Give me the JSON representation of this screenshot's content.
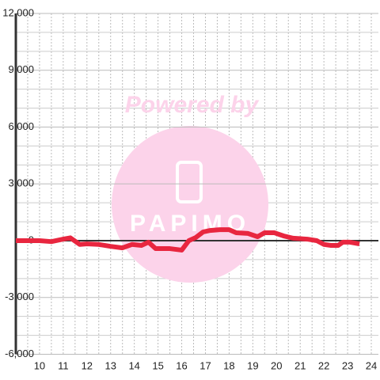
{
  "chart_data": {
    "type": "line",
    "watermark": "Powered by",
    "watermark_logo": "papimo",
    "x": [
      9,
      9.5,
      10,
      10.5,
      11,
      11.3,
      11.7,
      12,
      12.5,
      13,
      13.5,
      13.9,
      14.3,
      14.6,
      14.9,
      15.5,
      16,
      16.3,
      16.6,
      16.9,
      17.2,
      17.6,
      18,
      18.3,
      18.8,
      19.2,
      19.5,
      19.9,
      20.3,
      20.7,
      21.3,
      21.7,
      22,
      22.3,
      22.6,
      22.8,
      23.1,
      23.5
    ],
    "series": [
      {
        "color": "#e8263f",
        "values": [
          0,
          0,
          0,
          -50,
          80,
          150,
          -200,
          -170,
          -200,
          -300,
          -380,
          -200,
          -250,
          -80,
          -420,
          -420,
          -500,
          0,
          170,
          460,
          540,
          580,
          580,
          420,
          380,
          210,
          420,
          420,
          250,
          130,
          80,
          0,
          -200,
          -250,
          -250,
          -80,
          -80,
          -170
        ]
      }
    ],
    "xlim": [
      9,
      24.3
    ],
    "xticks": [
      10,
      11,
      12,
      13,
      14,
      15,
      16,
      17,
      18,
      19,
      20,
      21,
      22,
      23,
      24
    ],
    "x_minor_ticks": [
      9.5,
      10.5,
      11.5,
      12.5,
      13.5,
      14.5,
      15.5,
      16.5,
      17.5,
      18.5,
      19.5,
      20.5,
      21.5,
      22.5,
      23.5
    ],
    "ylim": [
      -6000,
      12000
    ],
    "yticks": [
      {
        "value": -6000,
        "label": "-6,000"
      },
      {
        "value": -3000,
        "label": "-3,000"
      },
      0,
      {
        "value": 3000,
        "label": "3,000"
      },
      {
        "value": 6000,
        "label": "6,000"
      },
      {
        "value": 9000,
        "label": "9,000"
      },
      {
        "value": 12000,
        "label": "12,000"
      }
    ],
    "y_minor_ticks": [
      -5000,
      -4000,
      -2000,
      -1000,
      1000,
      2000,
      4000,
      5000,
      7000,
      8000,
      10000,
      11000
    ],
    "grid": true
  }
}
